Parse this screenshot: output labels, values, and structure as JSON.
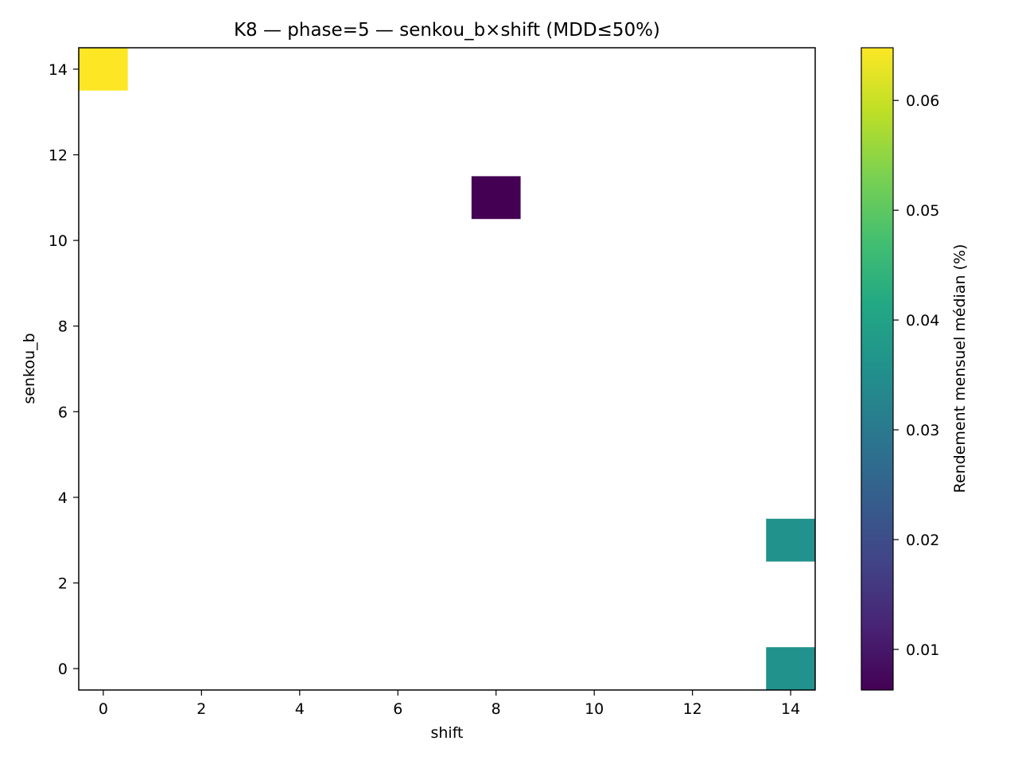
{
  "chart_data": {
    "type": "heatmap",
    "title": "K8 — phase=5 — senkou_b×shift (MDD≤50%)",
    "xlabel": "shift",
    "ylabel": "senkou_b",
    "xlim": [
      -0.5,
      14.5
    ],
    "ylim": [
      -0.5,
      14.5
    ],
    "xticks": [
      0,
      2,
      4,
      6,
      8,
      10,
      12,
      14
    ],
    "yticks": [
      0,
      2,
      4,
      6,
      8,
      10,
      12,
      14
    ],
    "cells": [
      {
        "x": 0,
        "y": 14,
        "value": 0.0648
      },
      {
        "x": 8,
        "y": 11,
        "value": 0.0063
      },
      {
        "x": 14,
        "y": 3,
        "value": 0.0357
      },
      {
        "x": 14,
        "y": 0,
        "value": 0.0357
      }
    ],
    "colorbar": {
      "label": "Rendement mensuel médian (%)",
      "range": [
        0.0063,
        0.0648
      ],
      "ticks": [
        0.01,
        0.02,
        0.03,
        0.04,
        0.05,
        0.06
      ],
      "tick_labels": [
        "0.01",
        "0.02",
        "0.03",
        "0.04",
        "0.05",
        "0.06"
      ],
      "colormap": "viridis"
    },
    "grid": false
  }
}
